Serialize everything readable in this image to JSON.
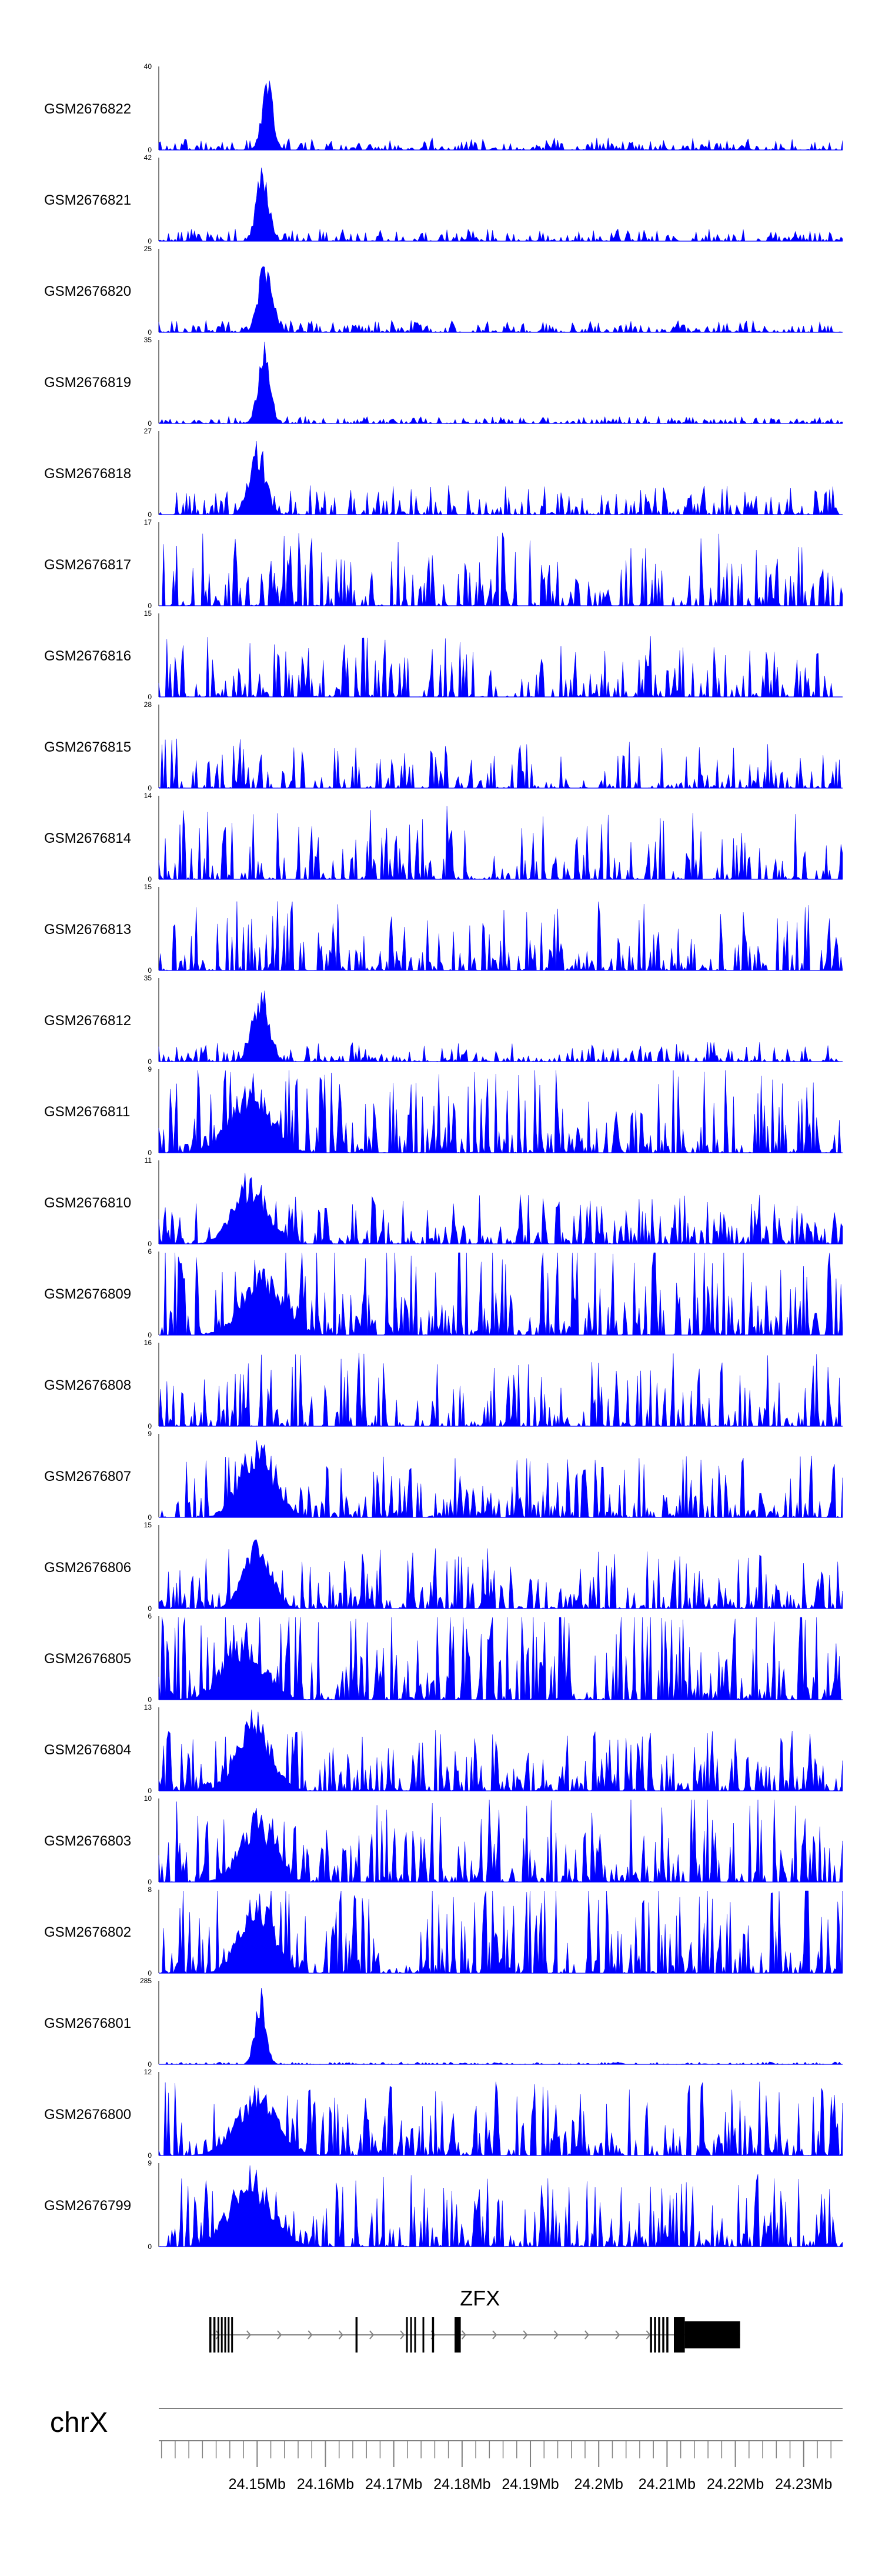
{
  "chart_data": {
    "type": "area",
    "chromosome": "chrX",
    "x_range_mb": [
      24.1356,
      24.2357
    ],
    "series": [
      {
        "name": "GSM2676822",
        "ymax": 40,
        "peak_mb": 24.1515,
        "peak_value": 40,
        "peak_width": 0.0008,
        "bg_level": 0.05,
        "sparsity": 0.3
      },
      {
        "name": "GSM2676821",
        "ymax": 42,
        "peak_mb": 24.1508,
        "peak_value": 42,
        "peak_width": 0.0009,
        "bg_level": 0.05,
        "sparsity": 0.3
      },
      {
        "name": "GSM2676820",
        "ymax": 25,
        "peak_mb": 24.1512,
        "peak_value": 25,
        "peak_width": 0.001,
        "bg_level": 0.05,
        "sparsity": 0.25
      },
      {
        "name": "GSM2676819",
        "ymax": 35,
        "peak_mb": 24.151,
        "peak_value": 35,
        "peak_width": 0.0009,
        "bg_level": 0.03,
        "sparsity": 0.25
      },
      {
        "name": "GSM2676818",
        "ymax": 27,
        "peak_mb": 24.15,
        "peak_value": 27,
        "peak_width": 0.0012,
        "bg_level": 0.12,
        "sparsity": 0.7
      },
      {
        "name": "GSM2676817",
        "ymax": 17,
        "peak_mb": null,
        "peak_value": 0,
        "peak_width": 0,
        "bg_level": 0.3,
        "sparsity": 0.8
      },
      {
        "name": "GSM2676816",
        "ymax": 15,
        "peak_mb": null,
        "peak_value": 0,
        "peak_width": 0,
        "bg_level": 0.25,
        "sparsity": 0.8
      },
      {
        "name": "GSM2676815",
        "ymax": 28,
        "peak_mb": null,
        "peak_value": 0,
        "peak_width": 0,
        "bg_level": 0.2,
        "sparsity": 0.8
      },
      {
        "name": "GSM2676814",
        "ymax": 14,
        "peak_mb": null,
        "peak_value": 0,
        "peak_width": 0,
        "bg_level": 0.3,
        "sparsity": 0.78
      },
      {
        "name": "GSM2676813",
        "ymax": 15,
        "peak_mb": null,
        "peak_value": 0,
        "peak_width": 0,
        "bg_level": 0.28,
        "sparsity": 0.8
      },
      {
        "name": "GSM2676812",
        "ymax": 35,
        "peak_mb": 24.1505,
        "peak_value": 35,
        "peak_width": 0.0012,
        "bg_level": 0.08,
        "sparsity": 0.55
      },
      {
        "name": "GSM2676811",
        "ymax": 9,
        "peak_mb": 24.149,
        "peak_value": 8,
        "peak_width": 0.003,
        "bg_level": 0.35,
        "sparsity": 0.5
      },
      {
        "name": "GSM2676810",
        "ymax": 11,
        "peak_mb": 24.149,
        "peak_value": 10,
        "peak_width": 0.0025,
        "bg_level": 0.2,
        "sparsity": 0.4
      },
      {
        "name": "GSM2676809",
        "ymax": 6,
        "peak_mb": 24.151,
        "peak_value": 5,
        "peak_width": 0.003,
        "bg_level": 0.4,
        "sparsity": 0.45
      },
      {
        "name": "GSM2676808",
        "ymax": 16,
        "peak_mb": null,
        "peak_value": 0,
        "peak_width": 0,
        "bg_level": 0.3,
        "sparsity": 0.75
      },
      {
        "name": "GSM2676807",
        "ymax": 9,
        "peak_mb": 24.15,
        "peak_value": 9,
        "peak_width": 0.0025,
        "bg_level": 0.25,
        "sparsity": 0.4
      },
      {
        "name": "GSM2676806",
        "ymax": 15,
        "peak_mb": 24.15,
        "peak_value": 14,
        "peak_width": 0.002,
        "bg_level": 0.25,
        "sparsity": 0.55
      },
      {
        "name": "GSM2676805",
        "ymax": 6,
        "peak_mb": 24.148,
        "peak_value": 5,
        "peak_width": 0.003,
        "bg_level": 0.45,
        "sparsity": 0.35
      },
      {
        "name": "GSM2676804",
        "ymax": 13,
        "peak_mb": 24.1495,
        "peak_value": 13,
        "peak_width": 0.0025,
        "bg_level": 0.25,
        "sparsity": 0.45
      },
      {
        "name": "GSM2676803",
        "ymax": 10,
        "peak_mb": 24.15,
        "peak_value": 9,
        "peak_width": 0.0025,
        "bg_level": 0.35,
        "sparsity": 0.4
      },
      {
        "name": "GSM2676802",
        "ymax": 8,
        "peak_mb": 24.15,
        "peak_value": 8,
        "peak_width": 0.0025,
        "bg_level": 0.4,
        "sparsity": 0.45
      },
      {
        "name": "GSM2676801",
        "ymax": 285,
        "peak_mb": 24.1505,
        "peak_value": 285,
        "peak_width": 0.0008,
        "bg_level": 0.01,
        "sparsity": 0.3
      },
      {
        "name": "GSM2676800",
        "ymax": 12,
        "peak_mb": 24.15,
        "peak_value": 11,
        "peak_width": 0.003,
        "bg_level": 0.3,
        "sparsity": 0.4
      },
      {
        "name": "GSM2676799",
        "ymax": 9,
        "peak_mb": 24.149,
        "peak_value": 9,
        "peak_width": 0.003,
        "bg_level": 0.3,
        "sparsity": 0.45
      }
    ],
    "ymin": 0,
    "gene": {
      "name": "ZFX",
      "start_mb": 24.143,
      "end_mb": 24.2207,
      "strand": "+",
      "exons_mb": [
        [
          24.143,
          24.1433
        ],
        [
          24.1436,
          24.1439
        ],
        [
          24.1442,
          24.1444
        ],
        [
          24.1447,
          24.1449
        ],
        [
          24.1452,
          24.1454
        ],
        [
          24.1457,
          24.1459
        ],
        [
          24.1462,
          24.1464
        ],
        [
          24.1644,
          24.1647
        ],
        [
          24.1718,
          24.172
        ],
        [
          24.1724,
          24.1726
        ],
        [
          24.173,
          24.1732
        ],
        [
          24.1742,
          24.1744
        ],
        [
          24.1756,
          24.1759
        ],
        [
          24.1789,
          24.1798
        ],
        [
          24.2075,
          24.2078
        ],
        [
          24.2081,
          24.2084
        ],
        [
          24.2087,
          24.209
        ],
        [
          24.2093,
          24.2096
        ],
        [
          24.2099,
          24.2102
        ],
        [
          24.211,
          24.2126
        ],
        [
          24.2126,
          24.2207
        ]
      ],
      "thin_end_mb": [
        24.2126,
        24.2207
      ]
    },
    "axis": {
      "tick_labels": [
        "24.15Mb",
        "24.16Mb",
        "24.17Mb",
        "24.18Mb",
        "24.19Mb",
        "24.2Mb",
        "24.21Mb",
        "24.22Mb",
        "24.23Mb"
      ],
      "tick_values_mb": [
        24.15,
        24.16,
        24.17,
        24.18,
        24.19,
        24.2,
        24.21,
        24.22,
        24.23
      ],
      "minor_tick_step_mb": 0.002
    },
    "colors": {
      "signal": "#0000ff",
      "gene": "#000000",
      "axis": "#808080"
    }
  }
}
